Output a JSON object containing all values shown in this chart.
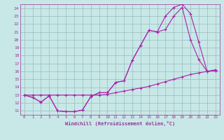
{
  "xlabel": "Windchill (Refroidissement éolien,°C)",
  "background_color": "#c8e8e8",
  "line_color": "#aa22aa",
  "grid_color": "#99bbbb",
  "axis_color": "#993399",
  "text_color": "#993399",
  "xlim": [
    -0.5,
    23.5
  ],
  "ylim": [
    10.5,
    24.5
  ],
  "xticks": [
    0,
    1,
    2,
    3,
    4,
    5,
    6,
    7,
    8,
    9,
    10,
    11,
    12,
    13,
    14,
    15,
    16,
    17,
    18,
    19,
    20,
    21,
    22,
    23
  ],
  "yticks": [
    11,
    12,
    13,
    14,
    15,
    16,
    17,
    18,
    19,
    20,
    21,
    22,
    23,
    24
  ],
  "line1_x": [
    0,
    1,
    2,
    3,
    4,
    5,
    6,
    7,
    8,
    9,
    10,
    11,
    12,
    13,
    14,
    15,
    16,
    17,
    18,
    19,
    20,
    21,
    22,
    23
  ],
  "line1_y": [
    13,
    12.7,
    12.1,
    12.9,
    11.0,
    10.9,
    10.9,
    11.1,
    12.8,
    13.3,
    13.3,
    14.6,
    14.8,
    17.4,
    19.3,
    21.2,
    21.0,
    21.3,
    23.0,
    24.1,
    20.0,
    17.5,
    16.0,
    16.1
  ],
  "line2_x": [
    0,
    1,
    2,
    3,
    4,
    5,
    6,
    7,
    8,
    9,
    10,
    11,
    12,
    13,
    14,
    15,
    16,
    17,
    18,
    19,
    20,
    21,
    22,
    23
  ],
  "line2_y": [
    13,
    13,
    13,
    13,
    13,
    13,
    13,
    13,
    13,
    13,
    13.1,
    13.3,
    13.5,
    13.7,
    13.9,
    14.1,
    14.4,
    14.7,
    15.0,
    15.3,
    15.6,
    15.8,
    16.0,
    16.2
  ],
  "line3_x": [
    0,
    1,
    2,
    3,
    4,
    5,
    6,
    7,
    8,
    9,
    10,
    11,
    12,
    13,
    14,
    15,
    16,
    17,
    18,
    19,
    20,
    21,
    22,
    23
  ],
  "line3_y": [
    13,
    12.7,
    12.1,
    12.9,
    11.0,
    10.9,
    10.9,
    11.1,
    12.8,
    13.3,
    13.3,
    14.6,
    14.8,
    17.4,
    19.3,
    21.2,
    21.0,
    23.0,
    24.1,
    24.5,
    23.3,
    19.7,
    16.0,
    16.1
  ]
}
